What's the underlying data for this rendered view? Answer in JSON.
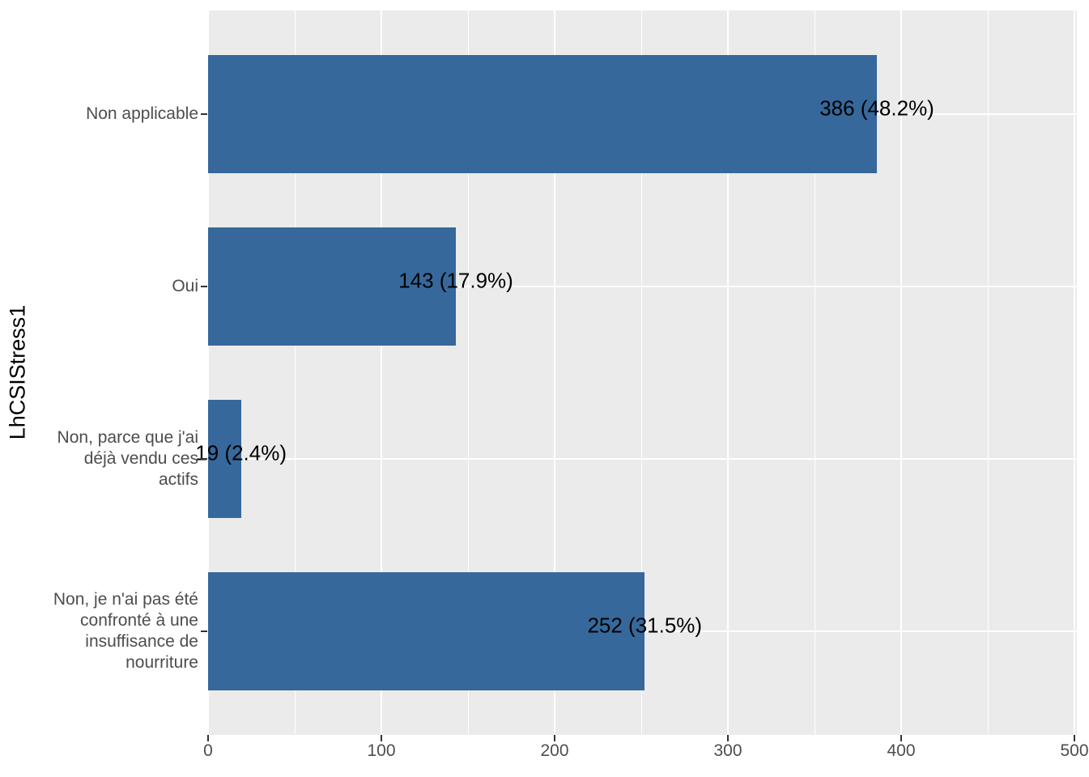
{
  "chart_data": {
    "type": "bar",
    "orientation": "horizontal",
    "title": "",
    "xlabel": "",
    "ylabel": "LhCSIStress1",
    "categories": [
      "Non applicable",
      "Oui",
      "Non, parce que j'ai déjà vendu ces actifs",
      "Non, je n'ai pas été confronté à une insuffisance de nourriture"
    ],
    "category_lines": [
      [
        "Non applicable"
      ],
      [
        "Oui"
      ],
      [
        "Non, parce que j'ai",
        "déjà vendu ces",
        "actifs"
      ],
      [
        "Non, je n'ai pas été",
        "confronté à une",
        "insuffisance de",
        "nourriture"
      ]
    ],
    "values": [
      386,
      143,
      19,
      252
    ],
    "percentages": [
      48.2,
      17.9,
      2.4,
      31.5
    ],
    "bar_labels": [
      "386 (48.2%)",
      "143 (17.9%)",
      "19 (2.4%)",
      "252 (31.5%)"
    ],
    "x_ticks": [
      0,
      100,
      200,
      300,
      400,
      500
    ],
    "x_minor_ticks": [
      50,
      150,
      250,
      350,
      450
    ],
    "xlim": [
      0,
      500
    ],
    "grid": true,
    "legend_position": "none",
    "colors": {
      "bar": "#36689B",
      "panel_background": "#EBEBEB",
      "gridline": "#FFFFFF",
      "axis_text": "#4D4D4D",
      "axis_title": "#000000",
      "bar_label_text": "#000000",
      "tick_mark": "#333333",
      "figure_background": "#FFFFFF"
    }
  }
}
